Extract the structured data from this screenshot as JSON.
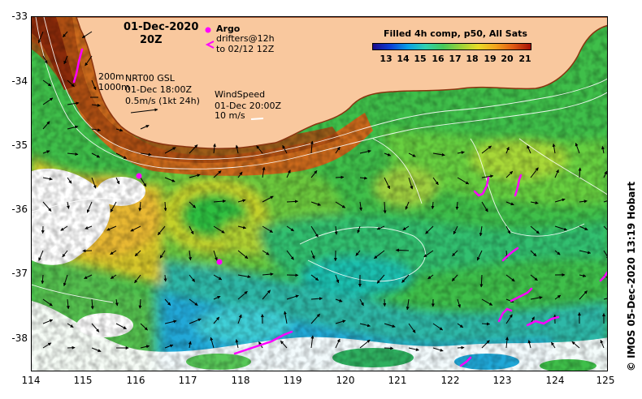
{
  "map": {
    "title_date": "01-Dec-2020",
    "title_time": "20Z",
    "lon_ticks": [
      "114",
      "115",
      "116",
      "117",
      "118",
      "119",
      "120",
      "121",
      "122",
      "123",
      "124",
      "125"
    ],
    "lat_ticks": [
      "-33",
      "-34",
      "-35",
      "-36",
      "-37",
      "-38"
    ],
    "lon_range": [
      114,
      125
    ],
    "lat_range": [
      -33,
      -38.5
    ]
  },
  "legend": {
    "argo_label": "Argo",
    "drifters_label": "drifters@12h",
    "drifters_period": "to 02/12 12Z",
    "colorbar_title": "Filled 4h comp, p50, All Sats",
    "colorbar_ticks": [
      "13",
      "14",
      "15",
      "16",
      "17",
      "18",
      "19",
      "20",
      "21"
    ]
  },
  "annotations": {
    "contour_200": "200m",
    "contour_1000": "1000m",
    "current_source": "NRT00 GSL",
    "current_time": "01-Dec 18:00Z",
    "current_scale": "0.5m/s (1kt 24h)",
    "wind_label": "WindSpeed",
    "wind_time": "01-Dec 20:00Z",
    "wind_scale": "10 m/s"
  },
  "credit": "© IMOS 05-Dec-2020 13:19 Hobart",
  "colors": {
    "land": "#f9c89e",
    "argo": "#ff00ff",
    "drifter": "#ff00ff",
    "contour": "#ffffff"
  }
}
